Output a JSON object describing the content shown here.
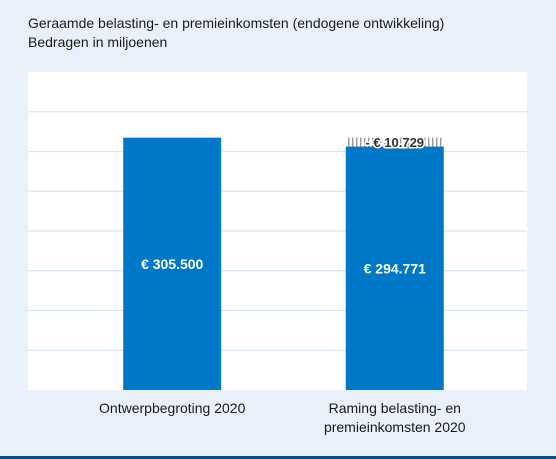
{
  "chart_data": {
    "type": "bar",
    "title": "Geraamde belasting- en premieinkomsten (endogene ontwikkeling)",
    "subtitle": "Bedragen in miljoenen",
    "categories": [
      "Ontwerpbegroting 2020",
      "Raming belasting- en premieinkomsten 2020"
    ],
    "category_lines": [
      [
        "Ontwerpbegroting 2020"
      ],
      [
        "Raming belasting- en",
        "premieinkomsten 2020"
      ]
    ],
    "values": [
      305500,
      294771
    ],
    "value_labels": [
      "€ 305.500",
      "€ 294.771"
    ],
    "difference": {
      "value": -10729,
      "label": "- € 10.729"
    },
    "ylim": [
      0,
      385000
    ],
    "grid": true,
    "legend": "none",
    "colors": {
      "bar": "#0078c8",
      "plot_bg": "#ffffff",
      "grid": "#d6e6f4",
      "page_bg": "#e8f1fa",
      "hatch": "#9a9a9a"
    }
  }
}
